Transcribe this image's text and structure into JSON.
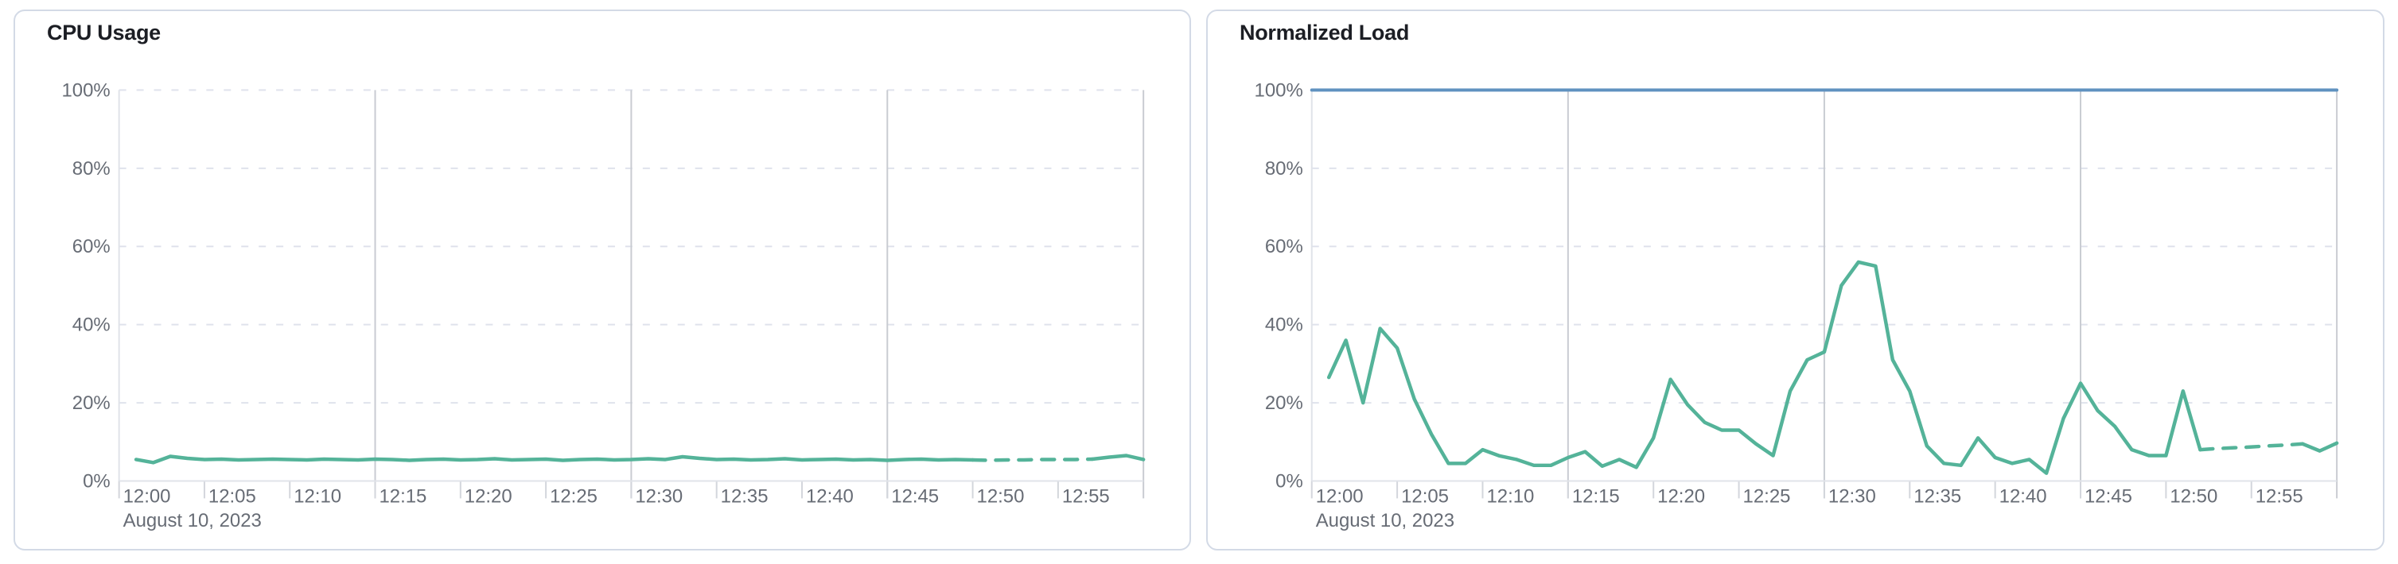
{
  "theme": {
    "page_bg": "#ffffff",
    "panel_bg": "#ffffff",
    "panel_border": "#d3dae6",
    "title_color": "#1c1e24",
    "label_color": "#676c75",
    "grid_dash_color": "#dfe2ec",
    "grid_solid_color": "#c9ccd2",
    "tick_color": "#d3d6dc",
    "axis_color": "#e0e3e9",
    "series_green": "#54b399",
    "series_blue": "#6092c0"
  },
  "chart_data": [
    {
      "type": "line",
      "title": "CPU Usage",
      "date_label": "August 10, 2023",
      "ylim": [
        0,
        100
      ],
      "y_tick_labels": [
        "100%",
        "80%",
        "60%",
        "40%",
        "20%",
        "0%"
      ],
      "y_tick_pcts": [
        100,
        80,
        60,
        40,
        20,
        0
      ],
      "x_range_minutes": [
        0,
        60
      ],
      "x_ticks": [
        {
          "label": "12:00",
          "min": 0
        },
        {
          "label": "12:05",
          "min": 5
        },
        {
          "label": "12:10",
          "min": 10
        },
        {
          "label": "12:15",
          "min": 15
        },
        {
          "label": "12:20",
          "min": 20
        },
        {
          "label": "12:25",
          "min": 25
        },
        {
          "label": "12:30",
          "min": 30
        },
        {
          "label": "12:35",
          "min": 35
        },
        {
          "label": "12:40",
          "min": 40
        },
        {
          "label": "12:45",
          "min": 45
        },
        {
          "label": "12:50",
          "min": 50
        },
        {
          "label": "12:55",
          "min": 55
        }
      ],
      "grid_minutes": [
        15,
        30,
        45,
        60
      ],
      "tick_minutes": [
        0,
        5,
        10,
        15,
        20,
        25,
        30,
        35,
        40,
        45,
        50,
        55
      ],
      "legend": "none",
      "grid": "horizontal dashed, vertical solid every 15 min",
      "series": [
        {
          "name": "cpu-usage-percent",
          "color_key": "series_green",
          "width": 4.5,
          "start_minute": 1,
          "dash_start_min": 50,
          "dash_end_min": 57,
          "dash_pattern": "16 13",
          "values": [
            5.5,
            4.7,
            6.3,
            5.8,
            5.5,
            5.6,
            5.4,
            5.5,
            5.6,
            5.5,
            5.4,
            5.6,
            5.5,
            5.4,
            5.6,
            5.5,
            5.3,
            5.5,
            5.6,
            5.4,
            5.5,
            5.7,
            5.4,
            5.5,
            5.6,
            5.3,
            5.5,
            5.6,
            5.4,
            5.5,
            5.7,
            5.5,
            6.2,
            5.8,
            5.5,
            5.6,
            5.4,
            5.5,
            5.7,
            5.4,
            5.5,
            5.6,
            5.4,
            5.5,
            5.3,
            5.5,
            5.6,
            5.4,
            5.5,
            5.4,
            5.3,
            5.4,
            5.4,
            5.5,
            5.5,
            5.5,
            5.6,
            6.1,
            6.5,
            5.5
          ]
        }
      ]
    },
    {
      "type": "line",
      "title": "Normalized Load",
      "date_label": "August 10, 2023",
      "ylim": [
        0,
        100
      ],
      "y_tick_labels": [
        "100%",
        "80%",
        "60%",
        "40%",
        "20%",
        "0%"
      ],
      "y_tick_pcts": [
        100,
        80,
        60,
        40,
        20,
        0
      ],
      "x_range_minutes": [
        0,
        60
      ],
      "x_ticks": [
        {
          "label": "12:00",
          "min": 0
        },
        {
          "label": "12:05",
          "min": 5
        },
        {
          "label": "12:10",
          "min": 10
        },
        {
          "label": "12:15",
          "min": 15
        },
        {
          "label": "12:20",
          "min": 20
        },
        {
          "label": "12:25",
          "min": 25
        },
        {
          "label": "12:30",
          "min": 30
        },
        {
          "label": "12:35",
          "min": 35
        },
        {
          "label": "12:40",
          "min": 40
        },
        {
          "label": "12:45",
          "min": 45
        },
        {
          "label": "12:50",
          "min": 50
        },
        {
          "label": "12:55",
          "min": 55
        }
      ],
      "grid_minutes": [
        15,
        30,
        45,
        60
      ],
      "tick_minutes": [
        0,
        5,
        10,
        15,
        20,
        25,
        30,
        35,
        40,
        45,
        50,
        55
      ],
      "legend": "none",
      "grid": "horizontal dashed, vertical solid every 15 min",
      "series": [
        {
          "name": "load-limit-100-percent",
          "color_key": "series_blue",
          "width": 4,
          "constant": 100
        },
        {
          "name": "normalized-load-percent",
          "color_key": "series_green",
          "width": 4.5,
          "start_minute": 1,
          "dash_start_min": 52,
          "dash_end_min": 58,
          "dash_pattern": "16 13",
          "values": [
            26.5,
            36,
            20,
            39,
            34,
            21,
            12,
            4.5,
            4.5,
            8,
            6.4,
            5.5,
            4,
            4,
            6,
            7.5,
            3.8,
            5.5,
            3.5,
            11,
            26,
            19.5,
            15,
            13,
            13,
            9.5,
            6.5,
            23,
            31,
            33,
            50,
            56,
            55,
            31,
            23,
            9,
            4.5,
            4,
            11,
            6,
            4.5,
            5.5,
            2,
            16,
            25,
            18,
            14,
            8,
            6.5,
            6.5,
            23,
            8,
            8.3,
            8.5,
            8.7,
            9,
            9.2,
            9.5,
            7.7,
            9.7
          ]
        }
      ]
    }
  ]
}
